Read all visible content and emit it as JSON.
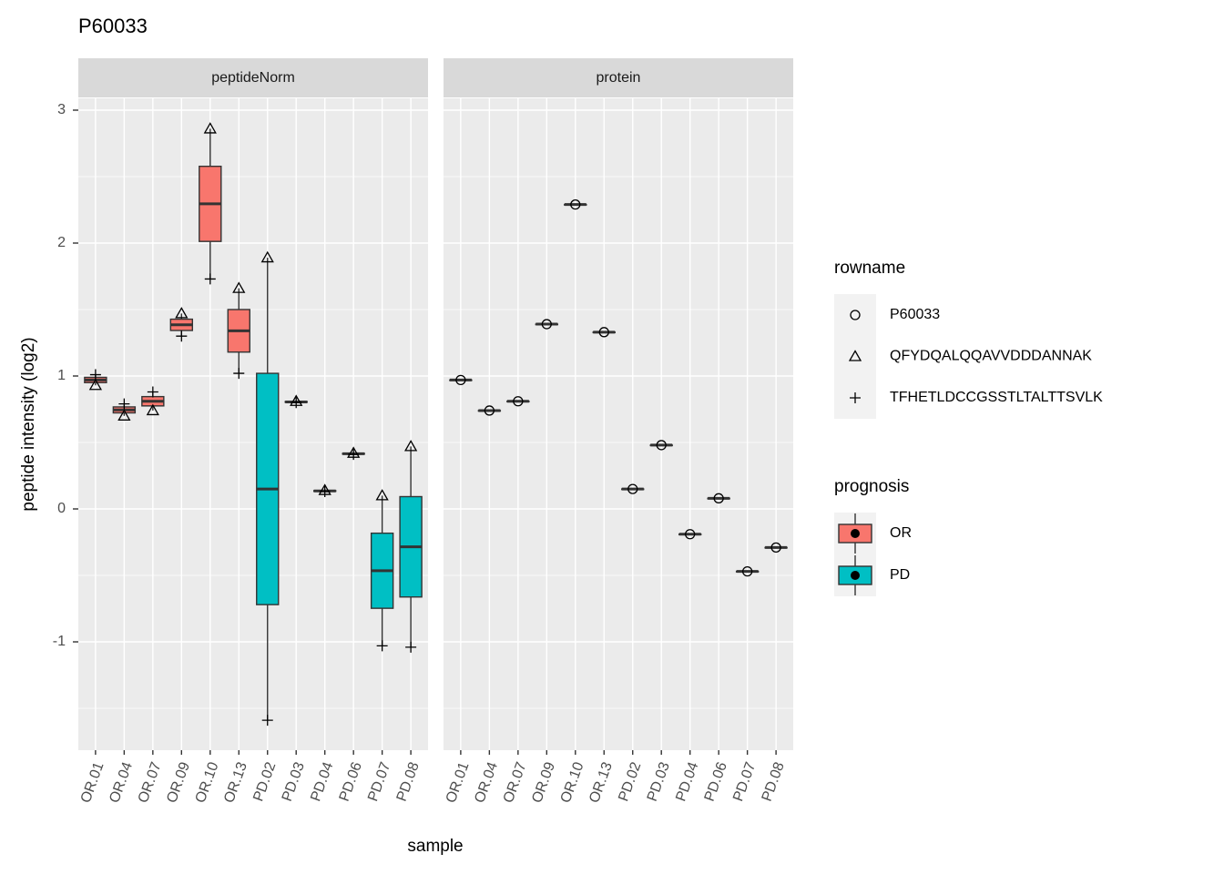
{
  "chart_data": {
    "type": "boxplot",
    "title": "P60033",
    "xlabel": "sample",
    "ylabel": "peptide intensity (log2)",
    "ylim": [
      -1.815,
      3.089
    ],
    "yticks": [
      -1,
      0,
      1,
      2,
      3
    ],
    "grid": true,
    "categories": [
      "OR.01",
      "OR.04",
      "OR.07",
      "OR.09",
      "OR.10",
      "OR.13",
      "PD.02",
      "PD.03",
      "PD.04",
      "PD.06",
      "PD.07",
      "PD.08"
    ],
    "group": [
      0,
      0,
      0,
      0,
      0,
      0,
      1,
      1,
      1,
      1,
      1,
      1
    ],
    "facets": [
      {
        "label": "peptideNorm",
        "series": [
          {
            "name": "QFYDQALQQAVVDDDANNAK",
            "shape": "triangle",
            "values": [
              0.93,
              0.7,
              0.74,
              1.47,
              2.86,
              1.66,
              1.89,
              0.81,
              0.14,
              0.42,
              0.1,
              0.47
            ]
          },
          {
            "name": "TFHETLDCCGSSTLTALTTSVLK",
            "shape": "plus",
            "values": [
              1.01,
              0.79,
              0.88,
              1.3,
              1.73,
              1.02,
              -1.59,
              0.8,
              0.13,
              0.41,
              -1.03,
              -1.04
            ]
          }
        ]
      },
      {
        "label": "protein",
        "series": [
          {
            "name": "P60033",
            "shape": "circle",
            "values": [
              0.97,
              0.74,
              0.81,
              1.39,
              2.29,
              1.33,
              0.15,
              0.48,
              -0.19,
              0.08,
              -0.47,
              -0.29
            ]
          }
        ]
      }
    ],
    "shape_legend": {
      "title": "rowname"
    },
    "fill_legend": {
      "title": "prognosis",
      "groups": [
        {
          "name": "OR",
          "color": "#F8766D"
        },
        {
          "name": "PD",
          "color": "#00BFC4"
        }
      ]
    }
  }
}
